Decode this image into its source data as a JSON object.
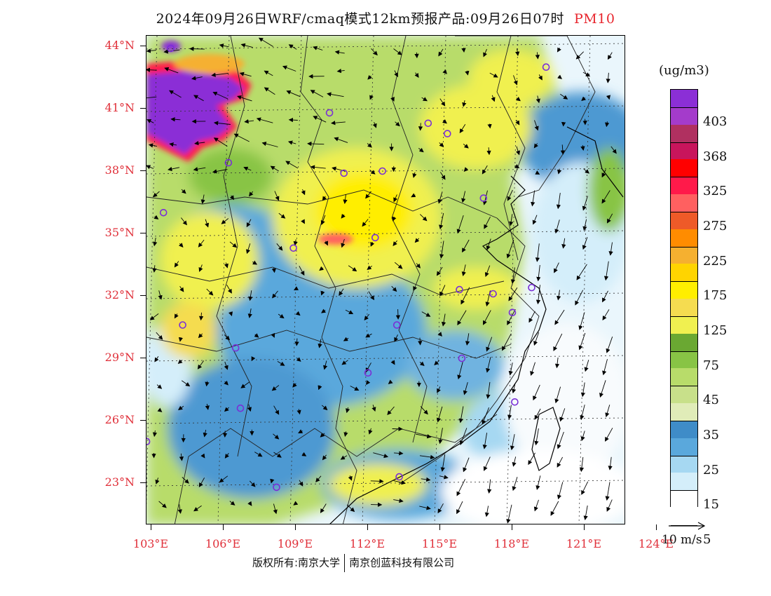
{
  "title": {
    "main": "2024年09月26日WRF/cmaq模式12km预报产品:09月26日07时",
    "variable": "PM10"
  },
  "map": {
    "lat_labels": [
      "44°N",
      "41°N",
      "38°N",
      "35°N",
      "32°N",
      "29°N",
      "26°N",
      "23°N"
    ],
    "lat_values": [
      44,
      41,
      38,
      35,
      32,
      29,
      26,
      23
    ],
    "lon_labels": [
      "103°E",
      "106°E",
      "109°E",
      "112°E",
      "115°E",
      "118°E",
      "121°E",
      "124°E"
    ],
    "lon_values": [
      103,
      106,
      109,
      112,
      115,
      118,
      121,
      124
    ],
    "station_marker_color": "#7a2fd6",
    "wind_vector_color": "#000000"
  },
  "colorbar": {
    "unit": "(ug/m3)",
    "labels": [
      "403",
      "368",
      "325",
      "275",
      "225",
      "175",
      "125",
      "75",
      "45",
      "35",
      "25",
      "15",
      "5"
    ],
    "colors": [
      "#8b2fd6",
      "#a43bcb",
      "#b03060",
      "#c8155c",
      "#ff0000",
      "#ff1a4a",
      "#ff6060",
      "#ee5a28",
      "#ff8c00",
      "#f5b030",
      "#ffd400",
      "#ffee00",
      "#f5dc50",
      "#f0f050",
      "#6aa832",
      "#88c445",
      "#b8dc6a",
      "#c8e08a",
      "#e0ecb8",
      "#3f8cc8",
      "#5aa8dc",
      "#a6d8f2",
      "#d4eefa",
      "#ffffff"
    ]
  },
  "vector_ref": {
    "label": "10 m/s"
  },
  "footer": {
    "left": "版权所有:南京大学",
    "right": "南京创蓝科技有限公司"
  }
}
